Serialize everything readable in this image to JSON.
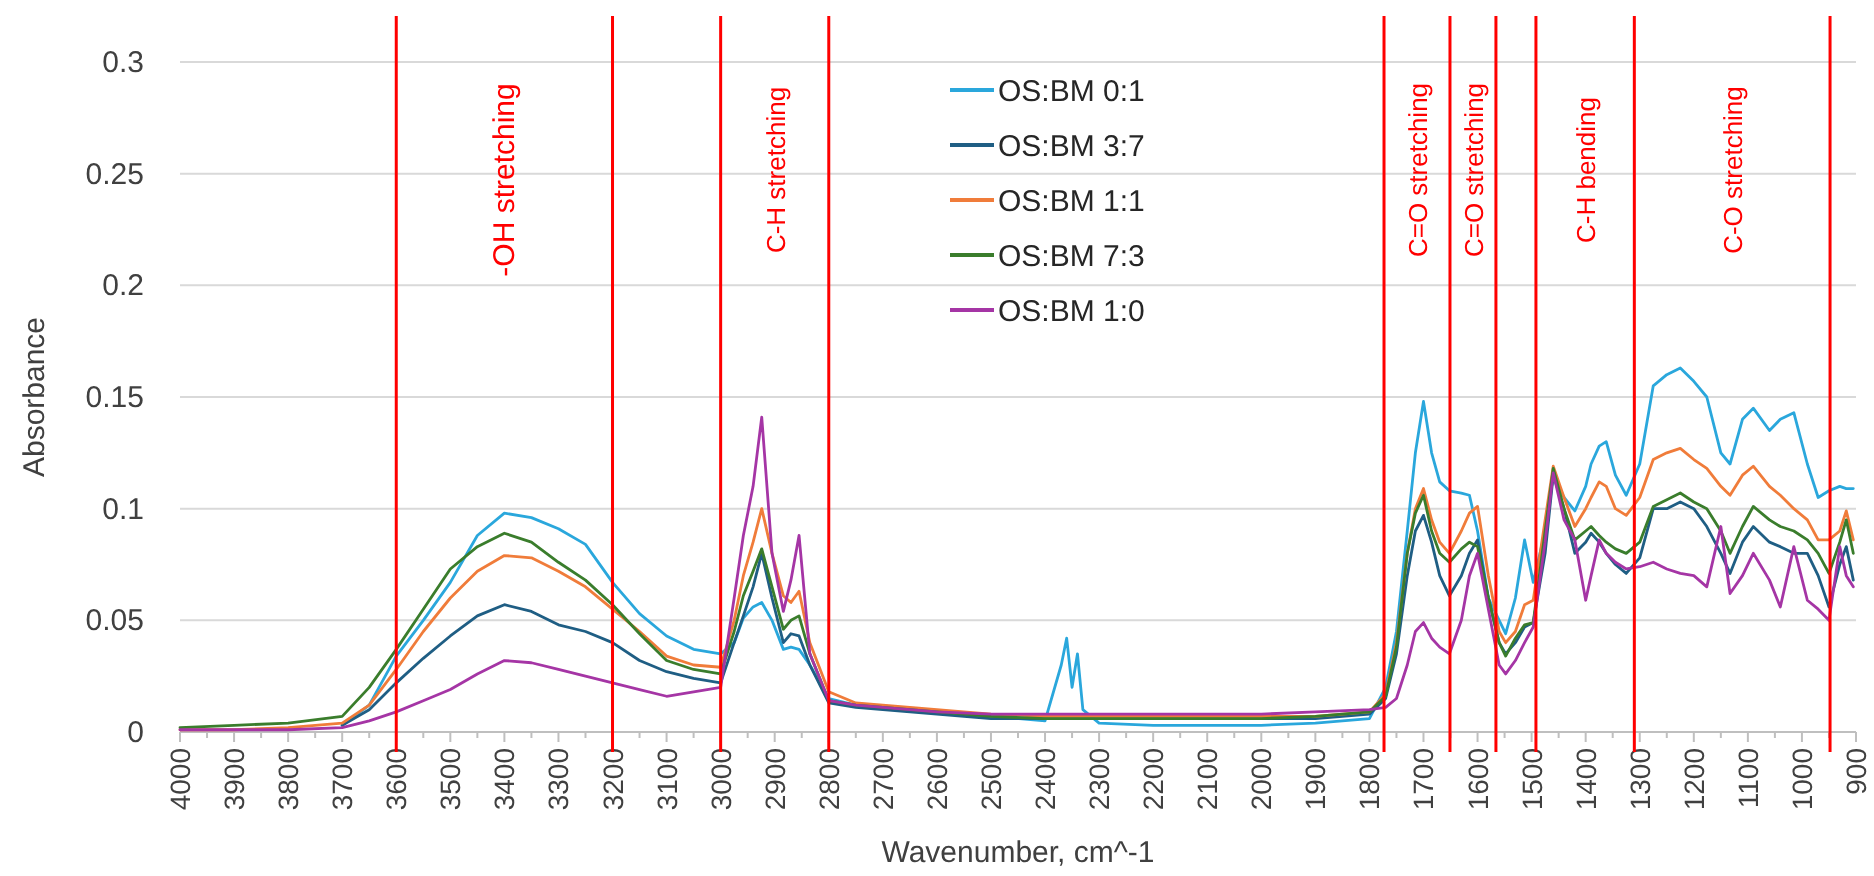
{
  "chart_data": {
    "type": "line",
    "xlabel": "Wavenumber, cm^-1",
    "ylabel": "Absorbance",
    "x": [
      4000,
      3900,
      3800,
      3700,
      3650,
      3600,
      3550,
      3500,
      3450,
      3400,
      3350,
      3300,
      3250,
      3200,
      3150,
      3100,
      3050,
      3000,
      2975,
      2958,
      2940,
      2924,
      2905,
      2884,
      2870,
      2855,
      2835,
      2800,
      2750,
      2700,
      2600,
      2500,
      2400,
      2370,
      2360,
      2350,
      2340,
      2330,
      2300,
      2200,
      2100,
      2000,
      1900,
      1800,
      1770,
      1750,
      1730,
      1715,
      1700,
      1685,
      1670,
      1652,
      1630,
      1615,
      1600,
      1580,
      1560,
      1548,
      1530,
      1513,
      1497,
      1475,
      1460,
      1440,
      1420,
      1400,
      1390,
      1375,
      1362,
      1345,
      1325,
      1300,
      1275,
      1250,
      1225,
      1200,
      1176,
      1150,
      1133,
      1110,
      1090,
      1060,
      1040,
      1015,
      990,
      970,
      950,
      930,
      918,
      905
    ],
    "series": [
      {
        "name": "OS:BM 0:1",
        "color": "#2aa7dc",
        "values": [
          null,
          null,
          null,
          0.003,
          0.012,
          0.034,
          0.05,
          0.067,
          0.088,
          0.098,
          0.096,
          0.091,
          0.084,
          0.067,
          0.053,
          0.043,
          0.037,
          0.035,
          0.04,
          0.051,
          0.056,
          0.058,
          0.05,
          0.037,
          0.038,
          0.037,
          0.03,
          0.015,
          0.012,
          0.011,
          0.009,
          0.007,
          0.005,
          0.03,
          0.042,
          0.02,
          0.035,
          0.01,
          0.004,
          0.003,
          0.003,
          0.003,
          0.004,
          0.006,
          0.02,
          0.045,
          0.09,
          0.125,
          0.148,
          0.125,
          0.112,
          0.108,
          0.107,
          0.106,
          0.09,
          0.06,
          0.05,
          0.044,
          0.06,
          0.086,
          0.067,
          0.09,
          0.115,
          0.105,
          0.099,
          0.11,
          0.12,
          0.128,
          0.13,
          0.115,
          0.106,
          0.12,
          0.155,
          0.16,
          0.163,
          0.157,
          0.15,
          0.125,
          0.12,
          0.14,
          0.145,
          0.135,
          0.14,
          0.143,
          0.12,
          0.105,
          0.108,
          0.11,
          0.109,
          0.109
        ]
      },
      {
        "name": "OS:BM 3:7",
        "color": "#1f5e84",
        "values": [
          null,
          null,
          null,
          0.003,
          0.01,
          0.022,
          0.033,
          0.043,
          0.052,
          0.057,
          0.054,
          0.048,
          0.045,
          0.04,
          0.032,
          0.027,
          0.024,
          0.022,
          0.04,
          0.052,
          0.065,
          0.08,
          0.06,
          0.04,
          0.044,
          0.043,
          0.03,
          0.013,
          0.011,
          0.01,
          0.008,
          0.006,
          0.006,
          0.006,
          0.006,
          0.006,
          0.006,
          0.006,
          0.006,
          0.006,
          0.006,
          0.006,
          0.006,
          0.008,
          0.015,
          0.035,
          0.07,
          0.09,
          0.097,
          0.085,
          0.07,
          0.061,
          0.07,
          0.08,
          0.086,
          0.06,
          0.04,
          0.035,
          0.04,
          0.047,
          0.049,
          0.08,
          0.115,
          0.1,
          0.08,
          0.085,
          0.089,
          0.085,
          0.08,
          0.075,
          0.071,
          0.078,
          0.1,
          0.1,
          0.103,
          0.1,
          0.092,
          0.08,
          0.071,
          0.085,
          0.092,
          0.085,
          0.083,
          0.08,
          0.08,
          0.07,
          0.056,
          0.075,
          0.083,
          0.068
        ]
      },
      {
        "name": "OS:BM 1:1",
        "color": "#f07c3a",
        "values": [
          0.001,
          0.001,
          0.002,
          0.004,
          0.012,
          0.028,
          0.045,
          0.06,
          0.072,
          0.079,
          0.078,
          0.072,
          0.065,
          0.055,
          0.045,
          0.034,
          0.03,
          0.029,
          0.05,
          0.07,
          0.085,
          0.1,
          0.08,
          0.061,
          0.058,
          0.063,
          0.04,
          0.018,
          0.013,
          0.012,
          0.01,
          0.008,
          0.007,
          0.007,
          0.007,
          0.007,
          0.007,
          0.007,
          0.007,
          0.007,
          0.007,
          0.007,
          0.007,
          0.009,
          0.017,
          0.04,
          0.08,
          0.1,
          0.109,
          0.095,
          0.085,
          0.08,
          0.09,
          0.098,
          0.101,
          0.07,
          0.045,
          0.04,
          0.045,
          0.057,
          0.059,
          0.095,
          0.119,
          0.105,
          0.092,
          0.1,
          0.105,
          0.112,
          0.11,
          0.1,
          0.097,
          0.105,
          0.122,
          0.125,
          0.127,
          0.122,
          0.118,
          0.11,
          0.106,
          0.115,
          0.119,
          0.11,
          0.106,
          0.1,
          0.095,
          0.086,
          0.086,
          0.09,
          0.099,
          0.086
        ]
      },
      {
        "name": "OS:BM 7:3",
        "color": "#3a7d2c",
        "values": [
          0.002,
          0.003,
          0.004,
          0.007,
          0.02,
          0.037,
          0.055,
          0.073,
          0.083,
          0.089,
          0.085,
          0.076,
          0.068,
          0.057,
          0.044,
          0.032,
          0.028,
          0.026,
          0.045,
          0.061,
          0.072,
          0.082,
          0.065,
          0.046,
          0.05,
          0.052,
          0.035,
          0.014,
          0.012,
          0.011,
          0.009,
          0.007,
          0.006,
          0.006,
          0.006,
          0.006,
          0.006,
          0.006,
          0.006,
          0.006,
          0.006,
          0.006,
          0.007,
          0.009,
          0.016,
          0.038,
          0.08,
          0.098,
          0.106,
          0.09,
          0.08,
          0.076,
          0.082,
          0.085,
          0.083,
          0.06,
          0.04,
          0.034,
          0.042,
          0.048,
          0.049,
          0.09,
          0.118,
          0.1,
          0.086,
          0.09,
          0.092,
          0.088,
          0.085,
          0.082,
          0.08,
          0.085,
          0.101,
          0.104,
          0.107,
          0.103,
          0.1,
          0.09,
          0.08,
          0.092,
          0.101,
          0.095,
          0.092,
          0.09,
          0.086,
          0.08,
          0.071,
          0.085,
          0.095,
          0.08
        ]
      },
      {
        "name": "OS:BM 1:0",
        "color": "#a535a5",
        "values": [
          0.001,
          0.001,
          0.001,
          0.002,
          0.005,
          0.009,
          0.014,
          0.019,
          0.026,
          0.032,
          0.031,
          0.028,
          0.025,
          0.022,
          0.019,
          0.016,
          0.018,
          0.02,
          0.06,
          0.088,
          0.11,
          0.141,
          0.08,
          0.054,
          0.068,
          0.088,
          0.035,
          0.014,
          0.012,
          0.011,
          0.009,
          0.008,
          0.008,
          0.008,
          0.008,
          0.008,
          0.008,
          0.008,
          0.008,
          0.008,
          0.008,
          0.008,
          0.009,
          0.01,
          0.011,
          0.015,
          0.03,
          0.045,
          0.049,
          0.042,
          0.038,
          0.035,
          0.05,
          0.07,
          0.08,
          0.055,
          0.03,
          0.026,
          0.032,
          0.04,
          0.047,
          0.085,
          0.116,
          0.095,
          0.086,
          0.059,
          0.07,
          0.086,
          0.08,
          0.076,
          0.073,
          0.074,
          0.076,
          0.073,
          0.071,
          0.07,
          0.065,
          0.092,
          0.062,
          0.07,
          0.08,
          0.068,
          0.056,
          0.083,
          0.059,
          0.055,
          0.05,
          0.083,
          0.07,
          0.065
        ]
      }
    ],
    "xlim": [
      4000,
      900
    ],
    "xticks": [
      4000,
      3900,
      3800,
      3700,
      3600,
      3500,
      3400,
      3300,
      3200,
      3100,
      3000,
      2900,
      2800,
      2700,
      2600,
      2500,
      2400,
      2300,
      2200,
      2100,
      2000,
      1900,
      1800,
      1700,
      1600,
      1500,
      1400,
      1300,
      1200,
      1100,
      1000,
      900
    ],
    "ylim": [
      0,
      0.3
    ],
    "yticks": [
      0,
      0.05,
      0.1,
      0.15,
      0.2,
      0.25,
      0.3
    ],
    "grid": "y",
    "legend": "top",
    "marker": "none",
    "line_style": "solid",
    "ref_lines": [
      {
        "axis": "x",
        "value": 3600,
        "color": "#ff0000",
        "label": "-OH stretching"
      },
      {
        "axis": "x",
        "value": 3200,
        "color": "#ff0000"
      },
      {
        "axis": "x",
        "value": 3000,
        "color": "#ff0000",
        "label": "C-H stretching"
      },
      {
        "axis": "x",
        "value": 2800,
        "color": "#ff0000"
      },
      {
        "axis": "x",
        "value": 1773,
        "color": "#ff0000",
        "label": "C=O stretching"
      },
      {
        "axis": "x",
        "value": 1651,
        "color": "#ff0000",
        "label": "C=O stretching"
      },
      {
        "axis": "x",
        "value": 1566,
        "color": "#ff0000"
      },
      {
        "axis": "x",
        "value": 1492,
        "color": "#ff0000",
        "label": "C-H bending"
      },
      {
        "axis": "x",
        "value": 1310,
        "color": "#ff0000",
        "label": "C-O stretching"
      },
      {
        "axis": "x",
        "value": 948,
        "color": "#ff0000"
      }
    ]
  }
}
